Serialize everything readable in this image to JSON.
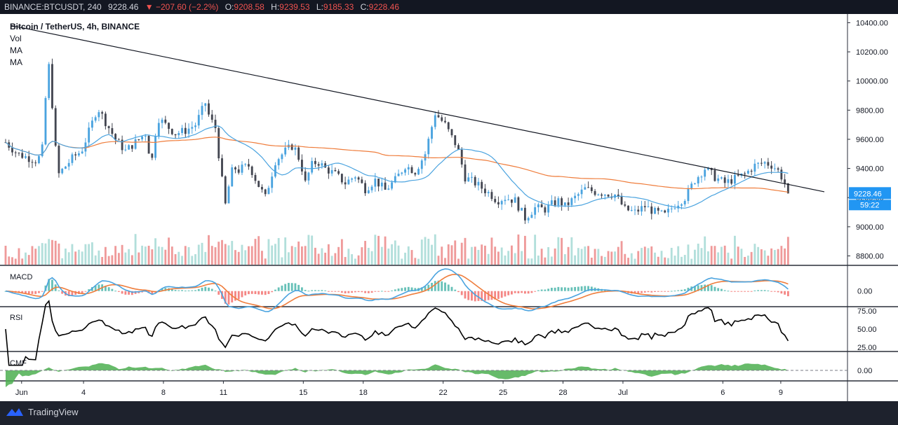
{
  "topbar": {
    "symbol": "BINANCE:BTCUSDT, 240",
    "last": "9228.46",
    "change": "−207.60 (−2.2%)",
    "o_label": "O:",
    "o_value": "9208.58",
    "h_label": "H:",
    "h_value": "9239.53",
    "l_label": "L:",
    "l_value": "9185.33",
    "c_label": "C:",
    "c_value": "9228.46"
  },
  "legend": {
    "title": "Bitcoin / TetherUS, 4h, BINANCE",
    "items": [
      "Vol",
      "MA",
      "MA"
    ]
  },
  "panes": {
    "macd": "MACD",
    "rsi": "RSI",
    "cmf": "CMF"
  },
  "price_badge": {
    "price": "9228.46",
    "countdown": "59:22"
  },
  "footer": {
    "brand": "TradingView"
  },
  "colors": {
    "up": "#4aa3df",
    "down": "#434651",
    "vol_up": "#b2dfdb",
    "vol_down": "#ef9a9a",
    "ma_fast": "#4aa3df",
    "ma_slow": "#ef7d3c",
    "trend": "#131722",
    "macd_line": "#4aa3df",
    "signal_line": "#ef7d3c",
    "hist_up": "#26a69a",
    "hist_down": "#ef5350",
    "cmf_fill": "#4caf50",
    "grid": "#f0f3fa",
    "axis_text": "#131722"
  },
  "chart_data": {
    "type": "candlestick",
    "title": "Bitcoin / TetherUS, 4h, BINANCE",
    "y_axis": {
      "ticks": [
        8800,
        9000,
        9200,
        9400,
        9600,
        9800,
        10000,
        10200,
        10400
      ],
      "range": [
        8740,
        10450
      ]
    },
    "x_axis": {
      "labels": [
        "Jun",
        "4",
        "8",
        "11",
        "15",
        "18",
        "22",
        "25",
        "28",
        "Jul",
        "6",
        "9"
      ],
      "range_days": [
        0,
        39.4
      ]
    },
    "price": {
      "anchors_days": [
        0,
        0.6,
        1.6,
        1.9,
        2.1,
        2.3,
        2.6,
        2.9,
        3.4,
        3.8,
        4.3,
        4.6,
        5.0,
        5.5,
        6.0,
        6.5,
        7.0,
        7.3,
        7.6,
        8.0,
        8.5,
        9.0,
        9.5,
        10.0,
        10.2,
        10.5,
        10.8,
        11.0,
        11.2,
        11.4,
        11.6,
        11.8,
        12.2,
        12.6,
        13.0,
        13.5,
        14.0,
        14.4,
        14.6,
        14.8,
        15.0,
        15.3,
        15.6,
        16.0,
        16.5,
        17.0,
        17.5,
        18.0,
        18.5,
        19.0,
        19.5,
        20.0,
        20.5,
        21.0,
        21.5,
        22.0,
        22.3,
        22.6,
        23.0,
        23.5,
        24.0,
        24.3,
        24.6,
        25.0,
        25.5,
        26.0,
        26.5,
        27.0,
        27.4,
        27.7,
        28.0,
        28.5,
        29.0,
        29.5,
        30.0,
        30.5,
        31.0,
        31.5,
        32.0,
        32.5,
        33.0,
        33.5,
        34.0,
        34.5,
        35.0,
        35.5,
        36.0,
        36.5,
        37.0,
        37.5,
        38.0,
        38.4,
        38.7,
        39.0,
        39.2
      ],
      "anchors_close": [
        9580,
        9500,
        9450,
        9560,
        10200,
        9900,
        9350,
        9400,
        9480,
        9520,
        9700,
        9820,
        9720,
        9600,
        9520,
        9580,
        9640,
        9430,
        9750,
        9700,
        9640,
        9660,
        9700,
        9850,
        9750,
        9680,
        9350,
        9150,
        9300,
        9420,
        9380,
        9400,
        9420,
        9300,
        9200,
        9450,
        9520,
        9560,
        9500,
        9420,
        9300,
        9420,
        9450,
        9400,
        9360,
        9300,
        9350,
        9260,
        9320,
        9250,
        9320,
        9420,
        9380,
        9500,
        9780,
        9700,
        9620,
        9550,
        9340,
        9300,
        9250,
        9220,
        9180,
        9200,
        9180,
        9060,
        9130,
        9120,
        9160,
        9180,
        9140,
        9200,
        9260,
        9240,
        9230,
        9220,
        9120,
        9100,
        9140,
        9100,
        9080,
        9150,
        9200,
        9320,
        9400,
        9340,
        9300,
        9330,
        9360,
        9420,
        9440,
        9420,
        9380,
        9300,
        9228.46
      ]
    },
    "volume_relative_scale": [
      0,
      1
    ],
    "indicators": [
      "Vol",
      "MA",
      "MA",
      "MACD",
      "RSI",
      "CMF"
    ],
    "rsi_ticks": [
      25,
      50,
      75
    ],
    "macd_ticks": [
      0
    ],
    "cmf_ticks": [
      0
    ],
    "trendline": {
      "from": {
        "day": 0.3,
        "price": 10380
      },
      "to": {
        "day": 39.2,
        "price": 9240
      }
    },
    "last_price": 9228.46
  }
}
